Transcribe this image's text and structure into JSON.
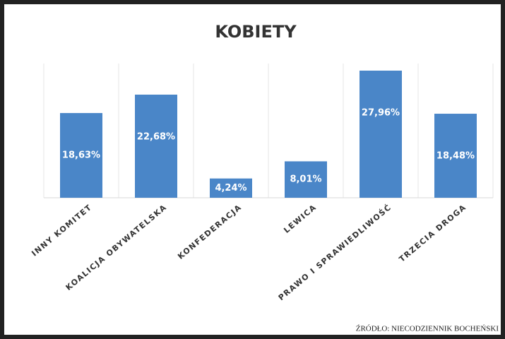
{
  "chart_data": {
    "type": "bar",
    "title": "KOBIETY",
    "categories": [
      "INNY KOMITET",
      "KOALICJA OBYWATELSKA",
      "KONFEDERACJA",
      "LEWICA",
      "PRAWO I SPRAWIEDLIWOŚĆ",
      "TRZECIA DROGA"
    ],
    "values": [
      18.63,
      22.68,
      4.24,
      8.01,
      27.96,
      18.48
    ],
    "value_labels": [
      "18,63%",
      "22,68%",
      "4,24%",
      "8,01%",
      "27,96%",
      "18,48%"
    ],
    "color": "#4a86c8",
    "annotation": "ŹRÓDŁO: NIECODZIENNIK BOCHEŃSKI"
  }
}
